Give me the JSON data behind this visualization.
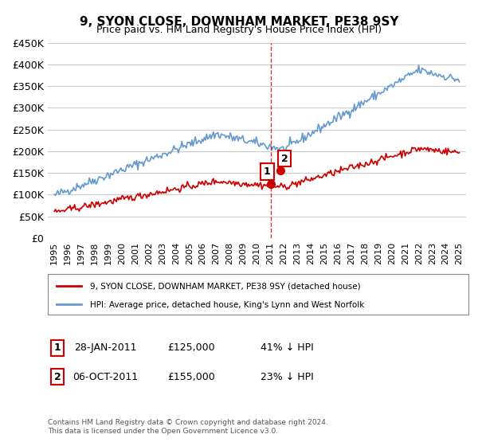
{
  "title": "9, SYON CLOSE, DOWNHAM MARKET, PE38 9SY",
  "subtitle": "Price paid vs. HM Land Registry's House Price Index (HPI)",
  "legend_property": "9, SYON CLOSE, DOWNHAM MARKET, PE38 9SY (detached house)",
  "legend_hpi": "HPI: Average price, detached house, King's Lynn and West Norfolk",
  "transaction1_date": "28-JAN-2011",
  "transaction1_price": "£125,000",
  "transaction1_hpi": "41% ↓ HPI",
  "transaction2_date": "06-OCT-2011",
  "transaction2_price": "£155,000",
  "transaction2_hpi": "23% ↓ HPI",
  "vline_x": 2011.07,
  "footnote": "Contains HM Land Registry data © Crown copyright and database right 2024.\nThis data is licensed under the Open Government Licence v3.0.",
  "ylim": [
    0,
    450000
  ],
  "yticks": [
    0,
    50000,
    100000,
    150000,
    200000,
    250000,
    300000,
    350000,
    400000,
    450000
  ],
  "ytick_labels": [
    "£0",
    "£50K",
    "£100K",
    "£150K",
    "£200K",
    "£250K",
    "£300K",
    "£350K",
    "£400K",
    "£450K"
  ],
  "property_color": "#cc0000",
  "hpi_color": "#6699cc",
  "background_color": "#ffffff",
  "grid_color": "#cccccc"
}
